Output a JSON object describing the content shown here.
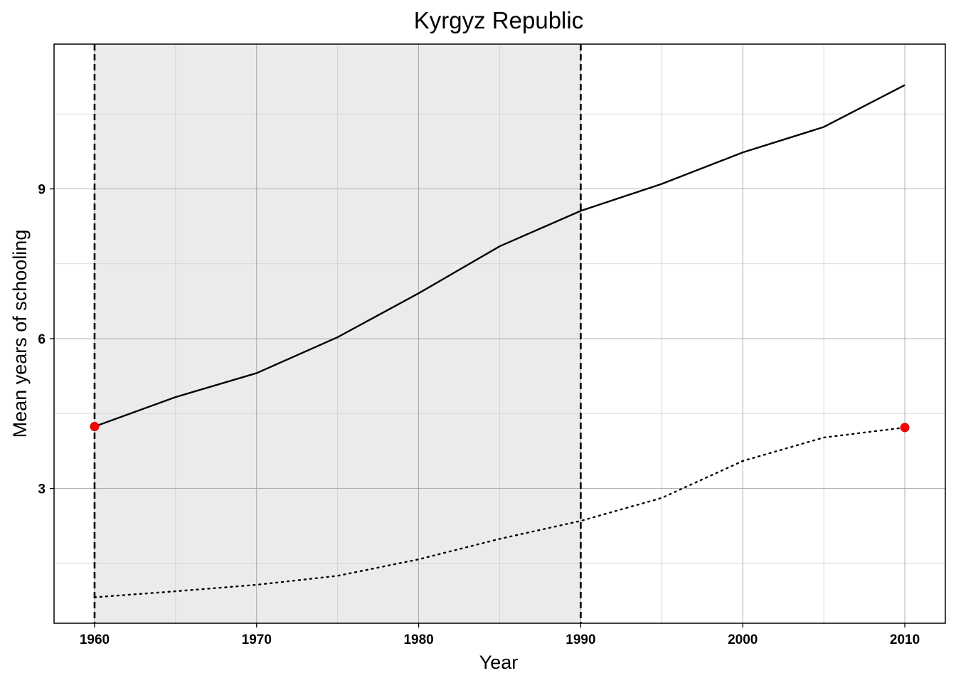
{
  "chart_data": {
    "type": "line",
    "title": "Kyrgyz Republic",
    "xlabel": "Year",
    "ylabel": "Mean years of schooling",
    "xlim": [
      1957.5,
      2012.5
    ],
    "ylim": [
      0.3,
      11.9
    ],
    "x_ticks": [
      1960,
      1970,
      1980,
      1990,
      2000,
      2010
    ],
    "y_ticks": [
      3,
      6,
      9
    ],
    "x_minor_grid": [
      1965,
      1975,
      1985,
      1995,
      2005
    ],
    "y_minor_grid": [
      1.5,
      4.5,
      7.5,
      10.5
    ],
    "grid": true,
    "shaded_period": [
      1960,
      1990
    ],
    "vertical_markers": [
      1960,
      1990
    ],
    "colors": {
      "shade": "#ebebeb",
      "grid_major": "#9a9a9a",
      "grid_minor": "#cfcfcf",
      "line": "#000000",
      "point": "#ff0000"
    },
    "series": [
      {
        "style": "solid",
        "x": [
          1960,
          1965,
          1970,
          1975,
          1980,
          1985,
          1990,
          1995,
          2000,
          2005,
          2010
        ],
        "y": [
          4.24,
          4.83,
          5.31,
          6.03,
          6.91,
          7.85,
          8.56,
          9.1,
          9.73,
          10.24,
          11.08
        ]
      },
      {
        "style": "dotted",
        "x": [
          1960,
          1965,
          1970,
          1975,
          1980,
          1985,
          1990,
          1995,
          2000,
          2005,
          2010
        ],
        "y": [
          0.82,
          0.94,
          1.07,
          1.25,
          1.58,
          1.99,
          2.35,
          2.81,
          3.55,
          4.02,
          4.22
        ]
      }
    ],
    "highlight_points": [
      {
        "x": 1960,
        "y": 4.24
      },
      {
        "x": 2010,
        "y": 4.22
      }
    ]
  }
}
